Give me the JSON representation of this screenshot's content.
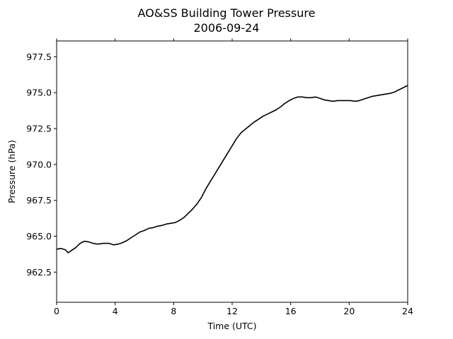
{
  "chart_data": {
    "type": "line",
    "title": "AO&SS Building Tower Pressure",
    "subtitle": "2006-09-24",
    "xlabel": "Time (UTC)",
    "ylabel": "Pressure (hPa)",
    "xlim": [
      0,
      24
    ],
    "ylim": [
      960.4,
      978.6
    ],
    "xticks": [
      0,
      4,
      8,
      12,
      16,
      20,
      24
    ],
    "yticks": [
      962.5,
      965.0,
      967.5,
      970.0,
      972.5,
      975.0,
      977.5
    ],
    "grid": false,
    "line_color": "#000000",
    "series": [
      {
        "x": [
          0,
          0.3,
          0.6,
          0.8,
          1.0,
          1.3,
          1.6,
          1.9,
          2.2,
          2.5,
          2.8,
          3.2,
          3.6,
          3.9,
          4.2,
          4.5,
          4.8,
          5.1,
          5.4,
          5.7,
          6.0,
          6.3,
          6.6,
          6.9,
          7.2,
          7.5,
          7.8,
          8.1,
          8.4,
          8.7,
          9.0,
          9.3,
          9.6,
          9.9,
          10.2,
          10.5,
          10.8,
          11.1,
          11.4,
          11.7,
          12.0,
          12.3,
          12.6,
          12.9,
          13.2,
          13.5,
          13.8,
          14.1,
          14.4,
          14.7,
          15.0,
          15.3,
          15.6,
          15.9,
          16.2,
          16.5,
          16.8,
          17.1,
          17.4,
          17.7,
          18.0,
          18.3,
          18.6,
          18.9,
          19.2,
          19.5,
          19.8,
          20.1,
          20.4,
          20.7,
          21.0,
          21.3,
          21.6,
          21.9,
          22.2,
          22.5,
          22.8,
          23.1,
          23.4,
          23.7,
          24.0
        ],
        "y": [
          964.1,
          964.15,
          964.05,
          963.85,
          964.0,
          964.2,
          964.5,
          964.65,
          964.6,
          964.5,
          964.45,
          964.5,
          964.5,
          964.4,
          964.45,
          964.55,
          964.7,
          964.9,
          965.1,
          965.3,
          965.4,
          965.55,
          965.6,
          965.7,
          965.75,
          965.85,
          965.9,
          965.95,
          966.1,
          966.3,
          966.6,
          966.9,
          967.25,
          967.7,
          968.3,
          968.8,
          969.3,
          969.8,
          970.3,
          970.8,
          971.3,
          971.8,
          972.2,
          972.45,
          972.7,
          972.95,
          973.15,
          973.35,
          973.5,
          973.65,
          973.8,
          974.0,
          974.25,
          974.45,
          974.6,
          974.7,
          974.7,
          974.65,
          974.65,
          974.7,
          974.6,
          974.5,
          974.45,
          974.4,
          974.45,
          974.45,
          974.45,
          974.45,
          974.4,
          974.45,
          974.55,
          974.65,
          974.75,
          974.8,
          974.85,
          974.9,
          974.95,
          975.05,
          975.2,
          975.35,
          975.5
        ]
      }
    ]
  }
}
